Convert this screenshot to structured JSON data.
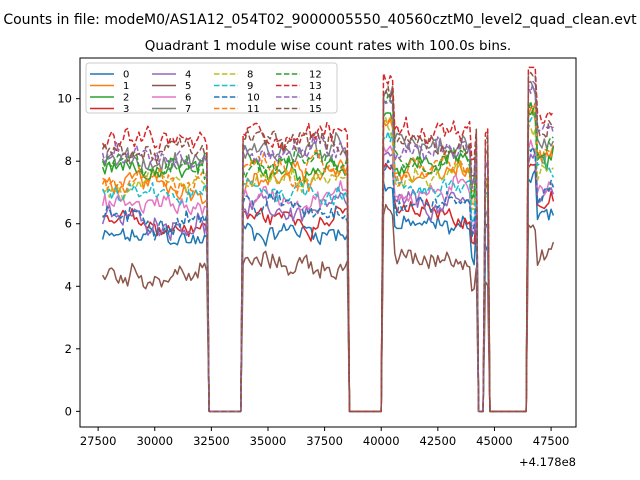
{
  "figure": {
    "suptitle": "Counts in file: modeM0/AS1A12_054T02_9000005550_40560cztM0_level2_quad_clean.evt"
  },
  "chart_data": {
    "type": "line",
    "title": "Quadrant 1 module wise count rates with 100.0s bins.",
    "xlabel": "",
    "ylabel": "",
    "x_offset_label": "+4.178e8",
    "xlim": [
      26700,
      48600
    ],
    "ylim": [
      -0.5,
      11.3
    ],
    "xticks": [
      27500,
      30000,
      32500,
      35000,
      37500,
      40000,
      42500,
      45000,
      47500
    ],
    "xtick_labels": [
      "27500",
      "30000",
      "32500",
      "35000",
      "37500",
      "40000",
      "42500",
      "45000",
      "47500"
    ],
    "yticks": [
      0,
      2,
      4,
      6,
      8,
      10
    ],
    "ytick_labels": [
      "0",
      "2",
      "4",
      "6",
      "8",
      "10"
    ],
    "grid": false,
    "legend": {
      "placement": "top-left",
      "columns": 4
    },
    "segments": [
      [
        27700,
        32300
      ],
      [
        33900,
        38500
      ],
      [
        40100,
        44200
      ],
      [
        44600,
        44700
      ],
      [
        46500,
        47600
      ]
    ],
    "zero_intervals": [
      [
        32400,
        33800
      ],
      [
        38600,
        40000
      ],
      [
        44300,
        44500
      ],
      [
        44800,
        46400
      ]
    ],
    "series": [
      {
        "name": "0",
        "color": "#1f77b4",
        "dash": "solid",
        "base": 5.5
      },
      {
        "name": "1",
        "color": "#ff7f0e",
        "dash": "solid",
        "base": 7.2
      },
      {
        "name": "2",
        "color": "#2ca02c",
        "dash": "solid",
        "base": 7.6
      },
      {
        "name": "3",
        "color": "#d62728",
        "dash": "solid",
        "base": 5.9
      },
      {
        "name": "4",
        "color": "#9467bd",
        "dash": "solid",
        "base": 6.1
      },
      {
        "name": "5",
        "color": "#8c564b",
        "dash": "solid",
        "base": 4.4
      },
      {
        "name": "6",
        "color": "#e377c2",
        "dash": "solid",
        "base": 6.6
      },
      {
        "name": "7",
        "color": "#7f7f7f",
        "dash": "solid",
        "base": 8.0
      },
      {
        "name": "8",
        "color": "#bcbd22",
        "dash": "dashed",
        "base": 7.0
      },
      {
        "name": "9",
        "color": "#17becf",
        "dash": "dashed",
        "base": 6.8
      },
      {
        "name": "10",
        "color": "#1f77b4",
        "dash": "dashed",
        "base": 6.3
      },
      {
        "name": "11",
        "color": "#ff7f0e",
        "dash": "dashed",
        "base": 7.4
      },
      {
        "name": "12",
        "color": "#2ca02c",
        "dash": "dashed",
        "base": 7.8
      },
      {
        "name": "13",
        "color": "#d62728",
        "dash": "dashed",
        "base": 8.6
      },
      {
        "name": "14",
        "color": "#9467bd",
        "dash": "dashed",
        "base": 8.1
      },
      {
        "name": "15",
        "color": "#8c564b",
        "dash": "dashed",
        "base": 8.3
      }
    ]
  }
}
